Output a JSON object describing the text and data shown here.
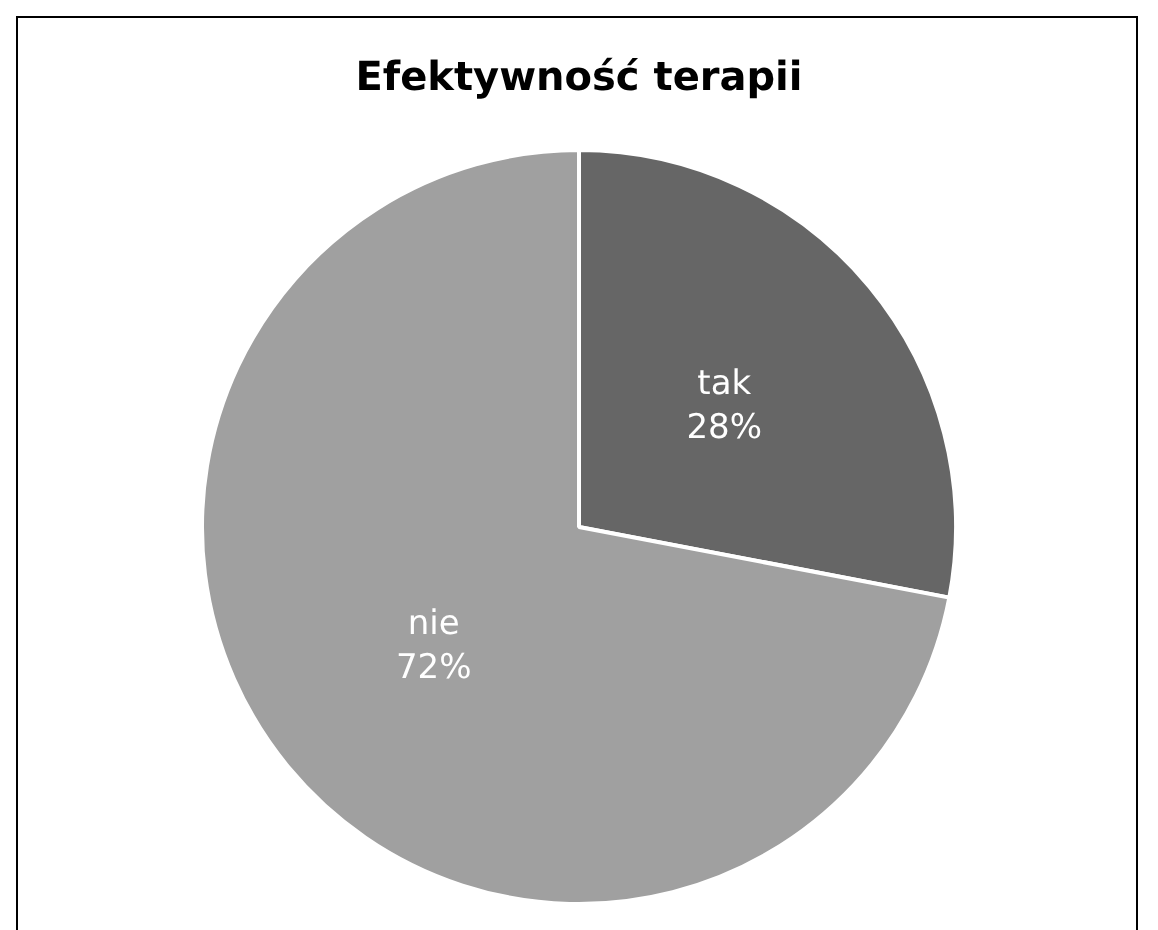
{
  "chart_data": {
    "type": "pie",
    "title": "Efektywność terapii",
    "categories": [
      "tak",
      "nie"
    ],
    "values": [
      28,
      72
    ],
    "colors": [
      "#666666",
      "#a0a0a0"
    ],
    "value_labels": [
      "28%",
      "72%"
    ]
  }
}
